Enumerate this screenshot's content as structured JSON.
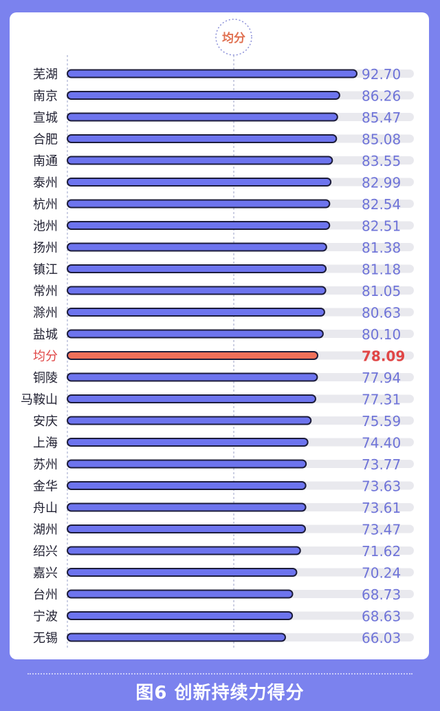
{
  "chart_data": {
    "type": "bar",
    "orientation": "horizontal",
    "categories": [
      "芜湖",
      "南京",
      "宣城",
      "合肥",
      "南通",
      "泰州",
      "杭州",
      "池州",
      "扬州",
      "镇江",
      "常州",
      "滁州",
      "盐城",
      "均分",
      "铜陵",
      "马鞍山",
      "安庆",
      "上海",
      "苏州",
      "金华",
      "舟山",
      "湖州",
      "绍兴",
      "嘉兴",
      "台州",
      "宁波",
      "无锡"
    ],
    "values": [
      92.7,
      86.26,
      85.47,
      85.08,
      83.55,
      82.99,
      82.54,
      82.51,
      81.38,
      81.18,
      81.05,
      80.63,
      80.1,
      78.09,
      77.94,
      77.31,
      75.59,
      74.4,
      73.77,
      73.63,
      73.61,
      73.47,
      71.62,
      70.24,
      68.73,
      68.63,
      66.03
    ],
    "value_labels": [
      "92.70",
      "86.26",
      "85.47",
      "85.08",
      "83.55",
      "82.99",
      "82.54",
      "82.51",
      "81.38",
      "81.18",
      "81.05",
      "80.63",
      "80.10",
      "78.09",
      "77.94",
      "77.31",
      "75.59",
      "74.40",
      "73.77",
      "73.63",
      "73.61",
      "73.47",
      "71.62",
      "70.24",
      "68.73",
      "68.63",
      "66.03"
    ],
    "highlight_category": "均分",
    "average_marker_label": "均分",
    "average_value": 78.09,
    "colors": {
      "bar": "#6d74ee",
      "bar_stroke": "#1c1c3a",
      "highlight_bar": "#f0705a",
      "highlight_text": "#e04646",
      "track": "#e9e9ee",
      "value_text": "#6f74d8",
      "label_text": "#222233",
      "marker": "#e07050",
      "guide": "#9aa0c8"
    }
  },
  "footer": {
    "title": "图6 创新持续力得分"
  }
}
